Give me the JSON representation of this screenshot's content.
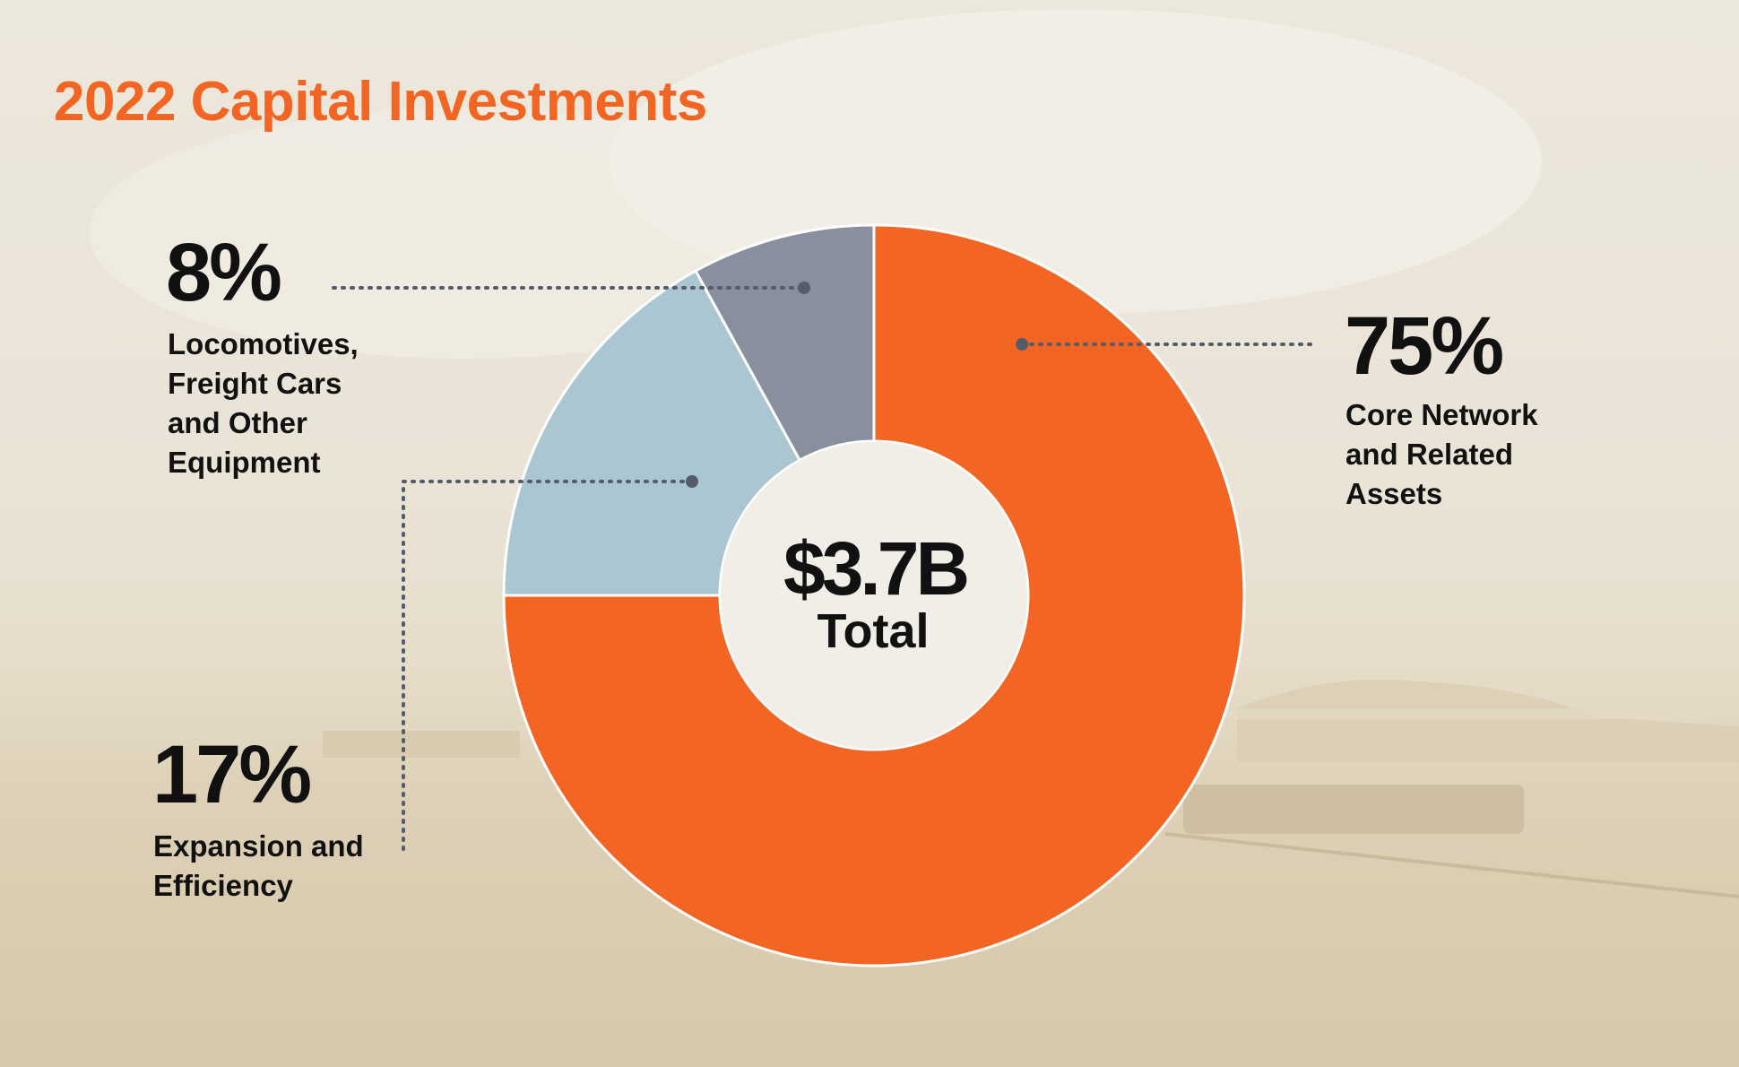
{
  "title": "2022 Capital Investments",
  "center": {
    "value": "$3.7B",
    "label": "Total"
  },
  "chart_data": {
    "type": "pie",
    "donut": true,
    "total": "$3.7B",
    "slices": [
      {
        "percent_label": "75%",
        "label": "Core Network\nand Related\nAssets",
        "value": 75,
        "color": "#f26522"
      },
      {
        "percent_label": "17%",
        "label": "Expansion and\nEfficiency",
        "value": 17,
        "color": "#a9c6d1"
      },
      {
        "percent_label": "8%",
        "label": "Locomotives,\nFreight Cars\nand Other\nEquipment",
        "value": 8,
        "color": "#8a8f9f"
      }
    ]
  }
}
